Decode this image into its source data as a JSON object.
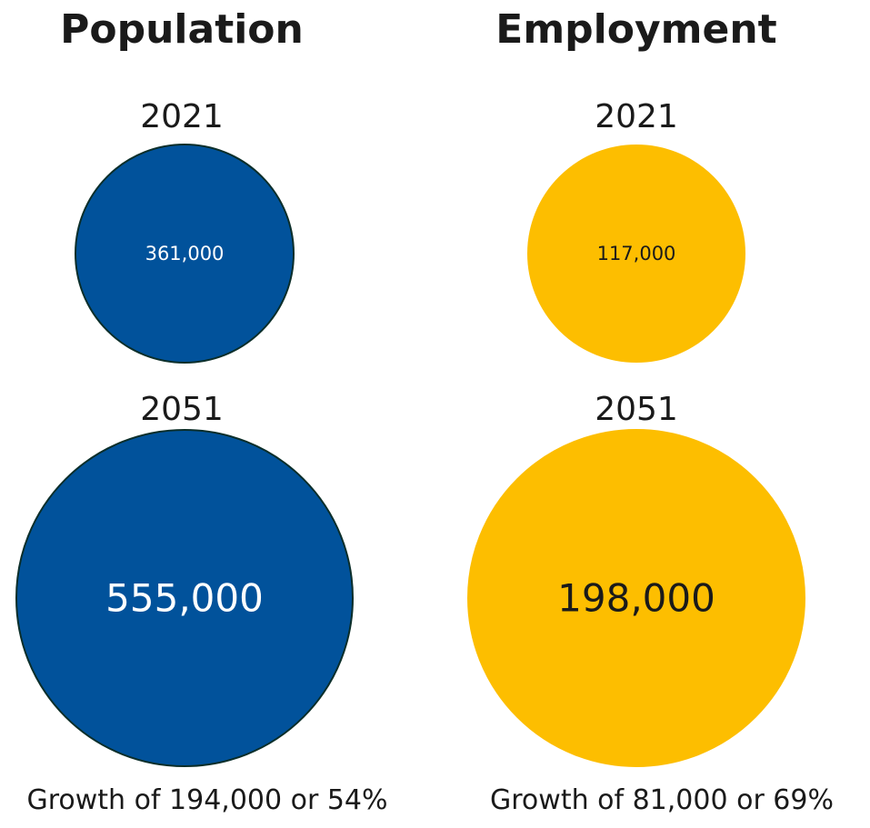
{
  "chart_data": {
    "type": "bubble",
    "panels": [
      {
        "title": "Population",
        "color": "#01529B",
        "stroke": "#0B2E2A",
        "value_text_color": "#FFFFFF",
        "circles": [
          {
            "year": "2021",
            "value": 361000,
            "label": "361,000"
          },
          {
            "year": "2051",
            "value": 555000,
            "label": "555,000"
          }
        ],
        "growth_text": "Growth of 194,000 or 54%"
      },
      {
        "title": "Employment",
        "color": "#FDBE00",
        "stroke": "#FDBE00",
        "value_text_color": "#1A1A1A",
        "circles": [
          {
            "year": "2021",
            "value": 117000,
            "label": "117,000"
          },
          {
            "year": "2051",
            "value": 198000,
            "label": "198,000"
          }
        ],
        "growth_text": "Growth of 81,000 or 69%"
      }
    ]
  }
}
